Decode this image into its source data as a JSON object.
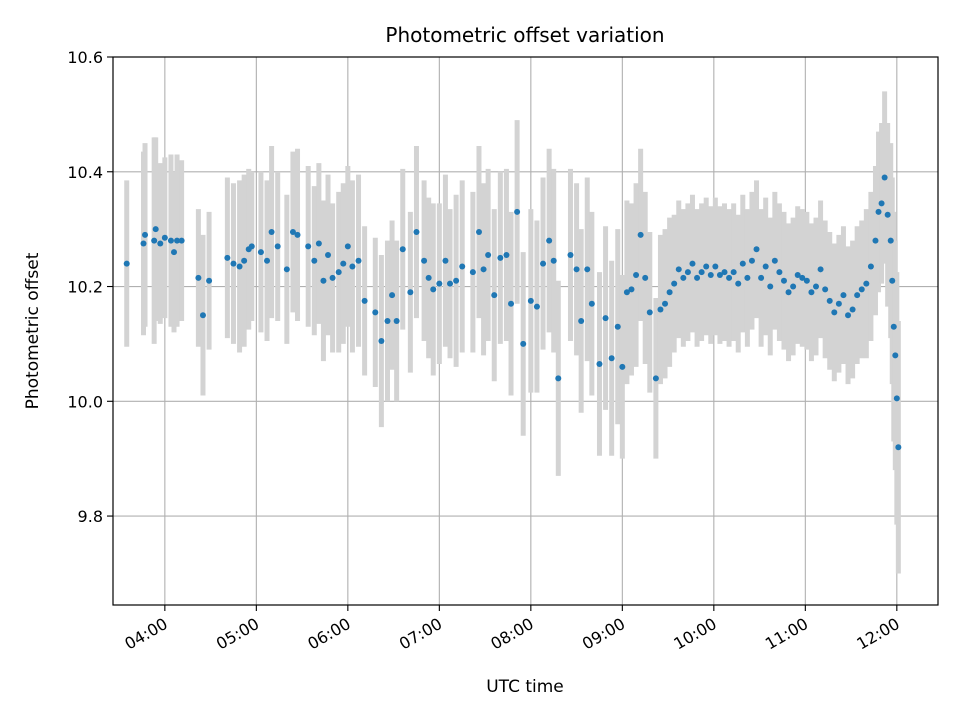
{
  "chart_data": {
    "type": "scatter",
    "title": "Photometric offset variation",
    "xlabel": "UTC time",
    "ylabel": "Photometric offset",
    "xlim": [
      "03:26",
      "12:27"
    ],
    "ylim": [
      9.645,
      10.6
    ],
    "x_ticks": [
      "04:00",
      "05:00",
      "06:00",
      "07:00",
      "08:00",
      "09:00",
      "10:00",
      "11:00",
      "12:00"
    ],
    "y_ticks": [
      9.8,
      10.0,
      10.2,
      10.4,
      10.6
    ],
    "y_tick_labels": [
      "9.8",
      "10.0",
      "10.2",
      "10.4",
      "10.6"
    ],
    "grid": true,
    "colors": {
      "points": "#1f77b4",
      "errorbars": "#d3d3d3",
      "grid": "#b0b0b0"
    },
    "series": [
      {
        "marker": "point",
        "errorbars": true,
        "points": [
          [
            "03:35",
            10.24,
            0.145
          ],
          [
            "03:46",
            10.275,
            0.16
          ],
          [
            "03:47",
            10.29,
            0.16
          ],
          [
            "03:53",
            10.28,
            0.18
          ],
          [
            "03:54",
            10.3,
            0.16
          ],
          [
            "03:57",
            10.275,
            0.14
          ],
          [
            "04:00",
            10.285,
            0.14
          ],
          [
            "04:04",
            10.28,
            0.15
          ],
          [
            "04:06",
            10.26,
            0.14
          ],
          [
            "04:08",
            10.28,
            0.15
          ],
          [
            "04:11",
            10.28,
            0.14
          ],
          [
            "04:22",
            10.215,
            0.12
          ],
          [
            "04:25",
            10.15,
            0.14
          ],
          [
            "04:29",
            10.21,
            0.12
          ],
          [
            "04:41",
            10.25,
            0.14
          ],
          [
            "04:45",
            10.24,
            0.14
          ],
          [
            "04:49",
            10.235,
            0.15
          ],
          [
            "04:52",
            10.245,
            0.15
          ],
          [
            "04:55",
            10.265,
            0.14
          ],
          [
            "04:57",
            10.27,
            0.13
          ],
          [
            "05:03",
            10.26,
            0.14
          ],
          [
            "05:07",
            10.245,
            0.14
          ],
          [
            "05:10",
            10.295,
            0.15
          ],
          [
            "05:14",
            10.27,
            0.13
          ],
          [
            "05:20",
            10.23,
            0.13
          ],
          [
            "05:24",
            10.295,
            0.14
          ],
          [
            "05:27",
            10.29,
            0.15
          ],
          [
            "05:34",
            10.27,
            0.14
          ],
          [
            "05:38",
            10.245,
            0.13
          ],
          [
            "05:41",
            10.275,
            0.14
          ],
          [
            "05:44",
            10.21,
            0.14
          ],
          [
            "05:47",
            10.255,
            0.14
          ],
          [
            "05:50",
            10.215,
            0.13
          ],
          [
            "05:54",
            10.225,
            0.14
          ],
          [
            "05:57",
            10.24,
            0.14
          ],
          [
            "06:00",
            10.27,
            0.14
          ],
          [
            "06:03",
            10.235,
            0.15
          ],
          [
            "06:07",
            10.245,
            0.15
          ],
          [
            "06:11",
            10.175,
            0.13
          ],
          [
            "06:18",
            10.155,
            0.13
          ],
          [
            "06:22",
            10.105,
            0.15
          ],
          [
            "06:26",
            10.14,
            0.14
          ],
          [
            "06:29",
            10.185,
            0.13
          ],
          [
            "06:32",
            10.14,
            0.14
          ],
          [
            "06:36",
            10.265,
            0.14
          ],
          [
            "06:41",
            10.19,
            0.14
          ],
          [
            "06:45",
            10.295,
            0.15
          ],
          [
            "06:50",
            10.245,
            0.14
          ],
          [
            "06:53",
            10.215,
            0.14
          ],
          [
            "06:56",
            10.195,
            0.15
          ],
          [
            "07:00",
            10.205,
            0.14
          ],
          [
            "07:04",
            10.245,
            0.15
          ],
          [
            "07:07",
            10.205,
            0.13
          ],
          [
            "07:11",
            10.21,
            0.15
          ],
          [
            "07:15",
            10.235,
            0.15
          ],
          [
            "07:22",
            10.225,
            0.14
          ],
          [
            "07:26",
            10.295,
            0.15
          ],
          [
            "07:29",
            10.23,
            0.15
          ],
          [
            "07:32",
            10.255,
            0.15
          ],
          [
            "07:36",
            10.185,
            0.15
          ],
          [
            "07:40",
            10.25,
            0.15
          ],
          [
            "07:44",
            10.255,
            0.15
          ],
          [
            "07:47",
            10.17,
            0.16
          ],
          [
            "07:51",
            10.33,
            0.16
          ],
          [
            "07:55",
            10.1,
            0.16
          ],
          [
            "08:00",
            10.175,
            0.16
          ],
          [
            "08:04",
            10.165,
            0.15
          ],
          [
            "08:08",
            10.24,
            0.15
          ],
          [
            "08:12",
            10.28,
            0.16
          ],
          [
            "08:15",
            10.245,
            0.16
          ],
          [
            "08:18",
            10.04,
            0.17
          ],
          [
            "08:26",
            10.255,
            0.15
          ],
          [
            "08:30",
            10.23,
            0.15
          ],
          [
            "08:33",
            10.14,
            0.16
          ],
          [
            "08:37",
            10.23,
            0.16
          ],
          [
            "08:40",
            10.17,
            0.16
          ],
          [
            "08:45",
            10.065,
            0.16
          ],
          [
            "08:49",
            10.145,
            0.16
          ],
          [
            "08:53",
            10.075,
            0.17
          ],
          [
            "08:57",
            10.13,
            0.17
          ],
          [
            "09:00",
            10.06,
            0.16
          ],
          [
            "09:03",
            10.19,
            0.16
          ],
          [
            "09:06",
            10.195,
            0.15
          ],
          [
            "09:09",
            10.22,
            0.16
          ],
          [
            "09:12",
            10.29,
            0.15
          ],
          [
            "09:15",
            10.215,
            0.15
          ],
          [
            "09:18",
            10.155,
            0.14
          ],
          [
            "09:22",
            10.04,
            0.14
          ],
          [
            "09:25",
            10.16,
            0.13
          ],
          [
            "09:28",
            10.17,
            0.13
          ],
          [
            "09:31",
            10.19,
            0.13
          ],
          [
            "09:34",
            10.205,
            0.12
          ],
          [
            "09:37",
            10.23,
            0.12
          ],
          [
            "09:40",
            10.215,
            0.12
          ],
          [
            "09:43",
            10.225,
            0.12
          ],
          [
            "09:46",
            10.24,
            0.12
          ],
          [
            "09:49",
            10.215,
            0.12
          ],
          [
            "09:52",
            10.225,
            0.12
          ],
          [
            "09:55",
            10.235,
            0.12
          ],
          [
            "09:58",
            10.22,
            0.12
          ],
          [
            "10:01",
            10.235,
            0.12
          ],
          [
            "10:04",
            10.22,
            0.12
          ],
          [
            "10:07",
            10.225,
            0.12
          ],
          [
            "10:10",
            10.215,
            0.12
          ],
          [
            "10:13",
            10.225,
            0.12
          ],
          [
            "10:16",
            10.205,
            0.12
          ],
          [
            "10:19",
            10.24,
            0.12
          ],
          [
            "10:22",
            10.215,
            0.12
          ],
          [
            "10:25",
            10.245,
            0.12
          ],
          [
            "10:28",
            10.265,
            0.12
          ],
          [
            "10:31",
            10.215,
            0.12
          ],
          [
            "10:34",
            10.235,
            0.12
          ],
          [
            "10:37",
            10.2,
            0.12
          ],
          [
            "10:40",
            10.245,
            0.12
          ],
          [
            "10:43",
            10.225,
            0.12
          ],
          [
            "10:46",
            10.21,
            0.12
          ],
          [
            "10:49",
            10.19,
            0.12
          ],
          [
            "10:52",
            10.2,
            0.12
          ],
          [
            "10:55",
            10.22,
            0.12
          ],
          [
            "10:58",
            10.215,
            0.12
          ],
          [
            "11:01",
            10.21,
            0.12
          ],
          [
            "11:04",
            10.19,
            0.12
          ],
          [
            "11:07",
            10.2,
            0.12
          ],
          [
            "11:10",
            10.23,
            0.12
          ],
          [
            "11:13",
            10.195,
            0.12
          ],
          [
            "11:16",
            10.175,
            0.12
          ],
          [
            "11:19",
            10.155,
            0.12
          ],
          [
            "11:22",
            10.17,
            0.12
          ],
          [
            "11:25",
            10.185,
            0.12
          ],
          [
            "11:28",
            10.15,
            0.12
          ],
          [
            "11:31",
            10.16,
            0.12
          ],
          [
            "11:34",
            10.185,
            0.12
          ],
          [
            "11:37",
            10.195,
            0.12
          ],
          [
            "11:40",
            10.205,
            0.13
          ],
          [
            "11:43",
            10.235,
            0.13
          ],
          [
            "11:46",
            10.28,
            0.13
          ],
          [
            "11:48",
            10.33,
            0.14
          ],
          [
            "11:50",
            10.345,
            0.14
          ],
          [
            "11:52",
            10.39,
            0.15
          ],
          [
            "11:54",
            10.325,
            0.16
          ],
          [
            "11:56",
            10.28,
            0.17
          ],
          [
            "11:57",
            10.21,
            0.18
          ],
          [
            "11:58",
            10.13,
            0.2
          ],
          [
            "11:59",
            10.08,
            0.2
          ],
          [
            "12:00",
            10.005,
            0.22
          ],
          [
            "12:01",
            9.92,
            0.22
          ]
        ]
      }
    ]
  }
}
